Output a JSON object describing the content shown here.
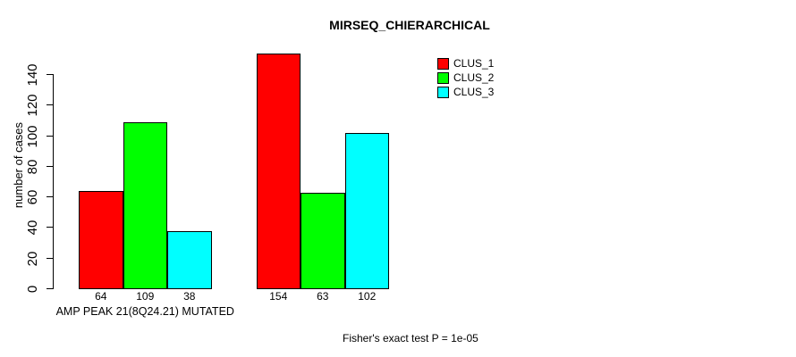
{
  "chart_data": {
    "type": "bar",
    "title": "MIRSEQ_CHIERARCHICAL",
    "ylabel": "number of cases",
    "xlabel": "AMP PEAK 21(8Q24.21) MUTATED",
    "ylim": [
      0,
      140
    ],
    "yticks": [
      0,
      20,
      40,
      60,
      80,
      100,
      120,
      140
    ],
    "categories": [
      "AMP PEAK 21(8Q24.21) MUTATED",
      ""
    ],
    "series": [
      {
        "name": "CLUS_1",
        "color": "#ff0000",
        "values": [
          64,
          154
        ]
      },
      {
        "name": "CLUS_2",
        "color": "#00ff00",
        "values": [
          109,
          63
        ]
      },
      {
        "name": "CLUS_3",
        "color": "#00ffff",
        "values": [
          38,
          102
        ]
      }
    ],
    "bar_value_labels": [
      [
        64,
        109,
        38
      ],
      [
        154,
        63,
        102
      ]
    ],
    "legend": {
      "position": "topright",
      "entries": [
        "CLUS_1",
        "CLUS_2",
        "CLUS_3"
      ]
    },
    "annotation": "Fisher's exact test P = 1e-05",
    "grid": false,
    "background": "#ffffff",
    "axis_color": "#000000"
  }
}
